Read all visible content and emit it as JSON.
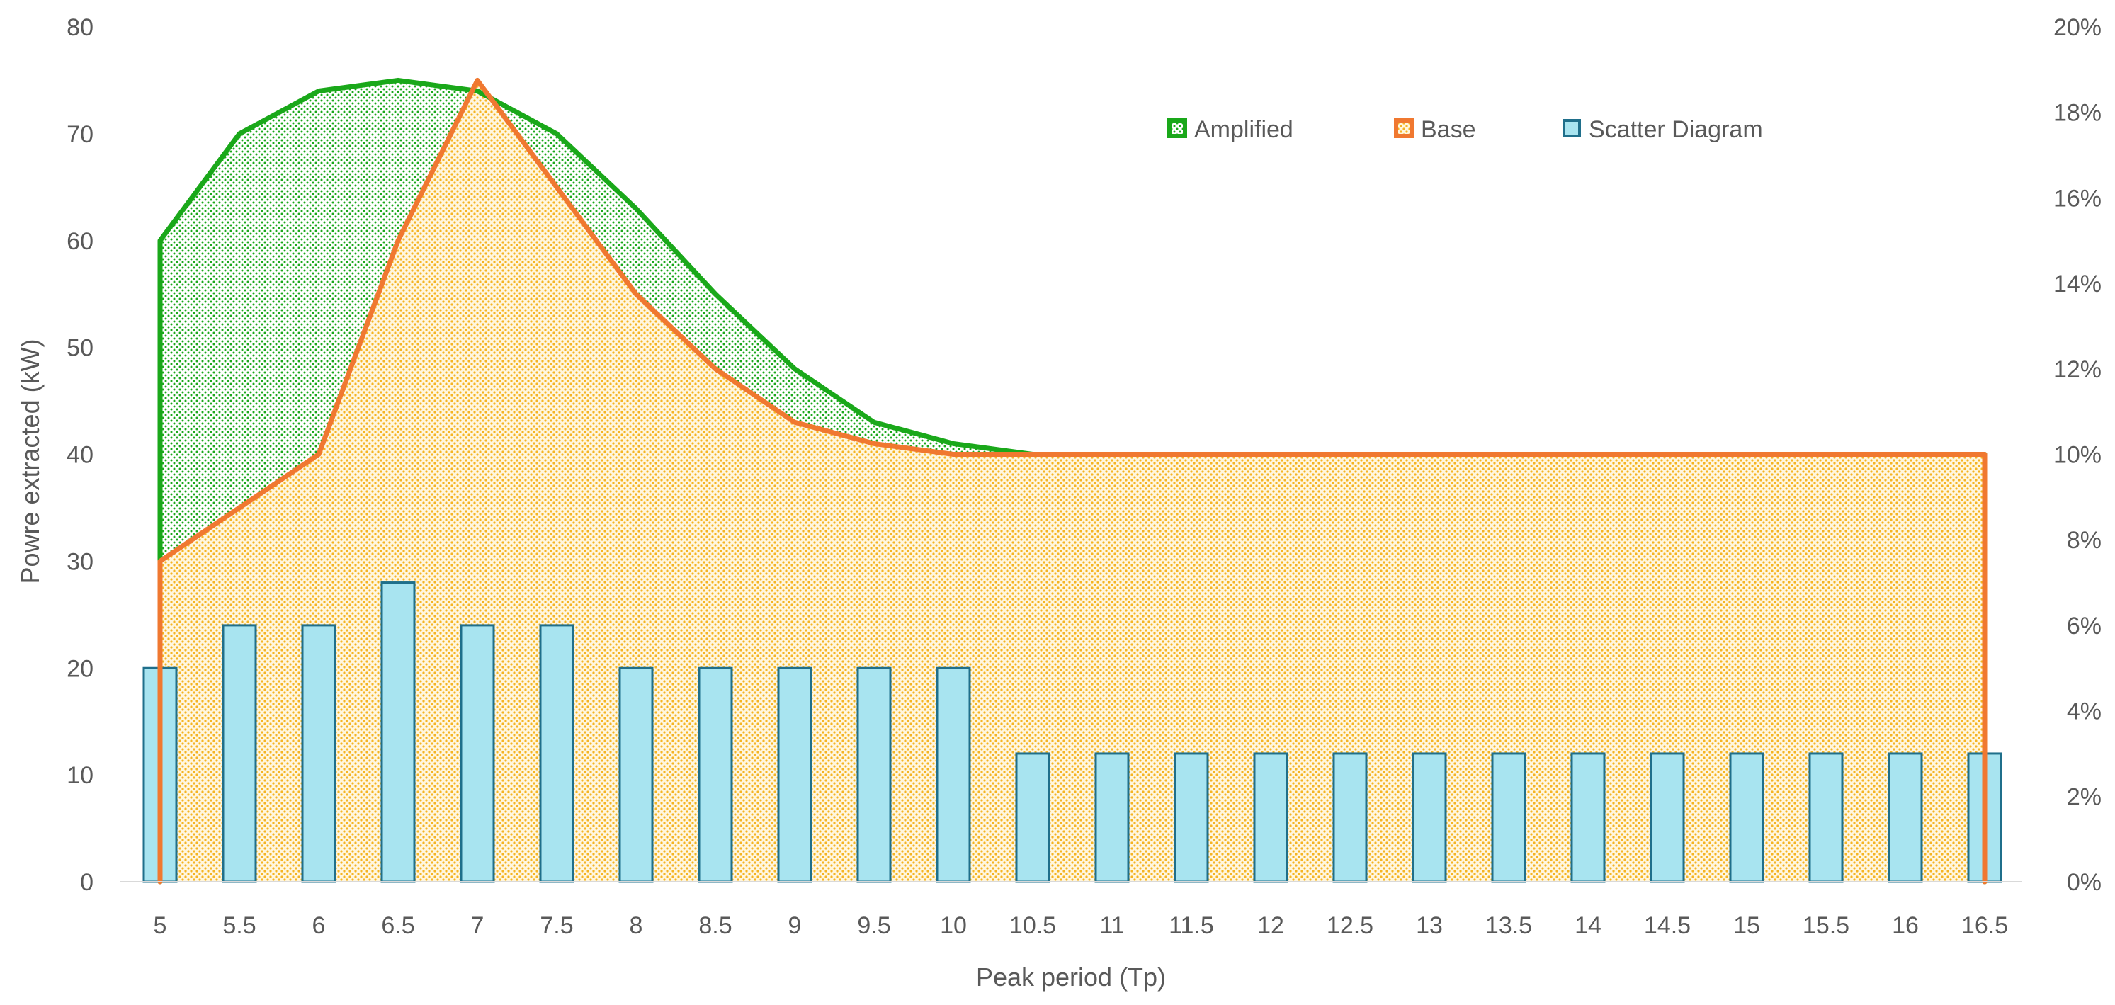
{
  "chart_data": {
    "type": "area",
    "title": "",
    "xlabel": "Peak period (Tp)",
    "ylabel": "Powre extracted (kW)",
    "x": [
      5,
      5.5,
      6,
      6.5,
      7,
      7.5,
      8,
      8.5,
      9,
      9.5,
      10,
      10.5,
      11,
      11.5,
      12,
      12.5,
      13,
      13.5,
      14,
      14.5,
      15,
      15.5,
      16,
      16.5
    ],
    "x_tick_labels": [
      "5",
      "5.5",
      "6",
      "6.5",
      "7",
      "7.5",
      "8",
      "8.5",
      "9",
      "9.5",
      "10",
      "10.5",
      "11",
      "11.5",
      "12",
      "12.5",
      "13",
      "13.5",
      "14",
      "14.5",
      "15",
      "15.5",
      "16",
      "16.5"
    ],
    "ylim": [
      0,
      80
    ],
    "y_ticks": [
      0,
      10,
      20,
      30,
      40,
      50,
      60,
      70,
      80
    ],
    "y_tick_labels": [
      "0",
      "10",
      "20",
      "30",
      "40",
      "50",
      "60",
      "70",
      "80"
    ],
    "y2lim": [
      0,
      20
    ],
    "y2_ticks": [
      0,
      2,
      4,
      6,
      8,
      10,
      12,
      14,
      16,
      18,
      20
    ],
    "y2_tick_labels": [
      "0%",
      "2%",
      "4%",
      "6%",
      "8%",
      "10%",
      "12%",
      "14%",
      "16%",
      "18%",
      "20%"
    ],
    "grid": false,
    "legend": "top-right",
    "series": [
      {
        "name": "Amplified",
        "type": "area",
        "axis": "left",
        "color": "#1aa81a",
        "values": [
          60,
          70,
          74,
          75,
          74,
          70,
          63,
          55,
          48,
          43,
          41,
          40,
          40,
          40,
          40,
          40,
          40,
          40,
          40,
          40,
          40,
          40,
          40,
          40
        ]
      },
      {
        "name": "Base",
        "type": "area",
        "axis": "left",
        "color": "#f07830",
        "values": [
          30,
          35,
          40,
          60,
          75,
          65,
          55,
          48,
          43,
          41,
          40,
          40,
          40,
          40,
          40,
          40,
          40,
          40,
          40,
          40,
          40,
          40,
          40,
          40
        ]
      },
      {
        "name": "Scatter Diagram",
        "type": "bar",
        "axis": "right",
        "color": "#a8e4f0",
        "edge_color": "#1f6f8b",
        "values": [
          5,
          6,
          6,
          7,
          6,
          6,
          5,
          5,
          5,
          5,
          5,
          3,
          3,
          3,
          3,
          3,
          3,
          3,
          3,
          3,
          3,
          3,
          3,
          3
        ]
      }
    ]
  }
}
